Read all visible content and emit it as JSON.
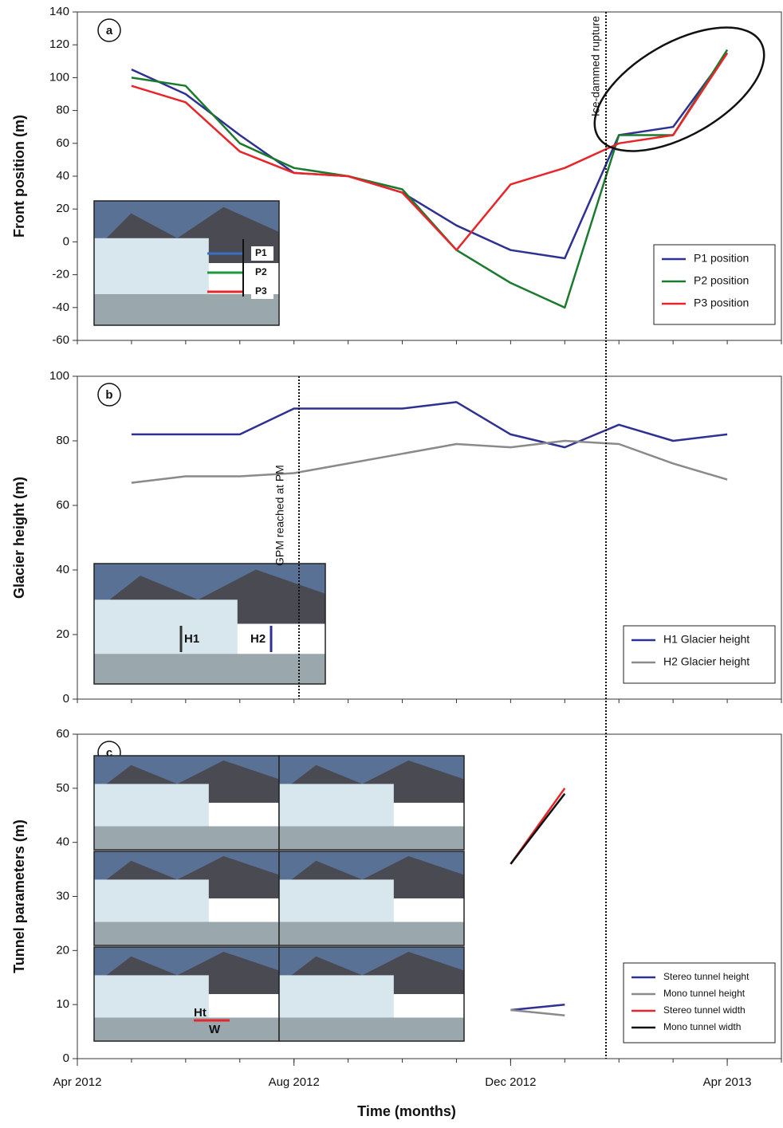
{
  "chart_data": [
    {
      "type": "line",
      "panel": "a",
      "ylabel": "Front position (m)",
      "x": [
        "2012-05",
        "2012-06",
        "2012-07",
        "2012-08",
        "2012-09",
        "2012-10",
        "2012-11",
        "2012-12",
        "2013-01",
        "2013-02",
        "2013-03",
        "2013-04"
      ],
      "xlim": [
        "2012-04",
        "2013-05"
      ],
      "ylim": [
        -60,
        140
      ],
      "yticks": [
        -60,
        -40,
        -20,
        0,
        20,
        40,
        60,
        80,
        100,
        120,
        140
      ],
      "series": [
        {
          "name": "P1 position",
          "color": "#2e3192",
          "values": [
            105,
            90,
            65,
            42,
            40,
            30,
            10,
            -5,
            -10,
            65,
            70,
            115
          ]
        },
        {
          "name": "P2 position",
          "color": "#1b7a2e",
          "values": [
            100,
            95,
            60,
            45,
            40,
            32,
            -5,
            -25,
            -40,
            65,
            65,
            117
          ]
        },
        {
          "name": "P3 position",
          "color": "#e8262a",
          "values": [
            95,
            85,
            55,
            42,
            40,
            30,
            -5,
            35,
            45,
            60,
            65,
            115
          ]
        }
      ],
      "annotation": "Ice-dammed rupture",
      "inset_labels": [
        "P1",
        "P2",
        "P3"
      ],
      "legend": "lower right"
    },
    {
      "type": "line",
      "panel": "b",
      "ylabel": "Glacier height (m)",
      "x": [
        "2012-05",
        "2012-06",
        "2012-07",
        "2012-08",
        "2012-09",
        "2012-10",
        "2012-11",
        "2012-12",
        "2013-01",
        "2013-02",
        "2013-03",
        "2013-04"
      ],
      "xlim": [
        "2012-04",
        "2013-05"
      ],
      "ylim": [
        0,
        100
      ],
      "yticks": [
        0,
        20,
        40,
        60,
        80,
        100
      ],
      "series": [
        {
          "name": "H1 Glacier height",
          "color": "#2e3192",
          "values": [
            82,
            82,
            82,
            90,
            90,
            90,
            92,
            82,
            78,
            85,
            80,
            82
          ]
        },
        {
          "name": "H2 Glacier height",
          "color": "#8a8a8a",
          "values": [
            67,
            69,
            69,
            70,
            73,
            76,
            79,
            78,
            80,
            79,
            73,
            68
          ]
        }
      ],
      "annotation": "GPM reached at PM",
      "inset_labels": [
        "H1",
        "H2"
      ],
      "legend": "lower right"
    },
    {
      "type": "line",
      "panel": "c",
      "ylabel": "Tunnel parameters (m)",
      "xlabel": "Time (months)",
      "x": [
        "2012-05",
        "2012-06",
        "2012-07",
        "2012-08",
        "2012-09",
        "2012-10",
        "2012-11",
        "2012-12",
        "2013-01",
        "2013-02",
        "2013-03",
        "2013-04"
      ],
      "xlim": [
        "2012-04",
        "2013-05"
      ],
      "ylim": [
        0,
        60
      ],
      "yticks": [
        0,
        10,
        20,
        30,
        40,
        50,
        60
      ],
      "xticks": [
        {
          "value": "2012-04",
          "label": "Apr 2012"
        },
        {
          "value": "2012-08",
          "label": "Aug 2012"
        },
        {
          "value": "2012-12",
          "label": "Dec 2012"
        },
        {
          "value": "2013-04",
          "label": "Apr 2013"
        }
      ],
      "series": [
        {
          "name": "Stereo tunnel height",
          "color": "#2e3192",
          "values": [
            null,
            null,
            null,
            null,
            null,
            null,
            null,
            9,
            10,
            null,
            null,
            null
          ]
        },
        {
          "name": "Mono tunnel height",
          "color": "#8a8a8a",
          "values": [
            null,
            null,
            null,
            null,
            null,
            null,
            null,
            9,
            8,
            null,
            null,
            null
          ]
        },
        {
          "name": "Stereo tunnel width",
          "color": "#e8262a",
          "values": [
            null,
            null,
            null,
            null,
            null,
            null,
            null,
            36,
            50,
            null,
            null,
            null
          ]
        },
        {
          "name": "Mono tunnel width",
          "color": "#111111",
          "values": [
            null,
            null,
            null,
            null,
            null,
            null,
            null,
            36,
            49,
            null,
            null,
            null
          ]
        }
      ],
      "inset_labels": [
        "Ht",
        "W"
      ],
      "legend": "lower right"
    }
  ]
}
